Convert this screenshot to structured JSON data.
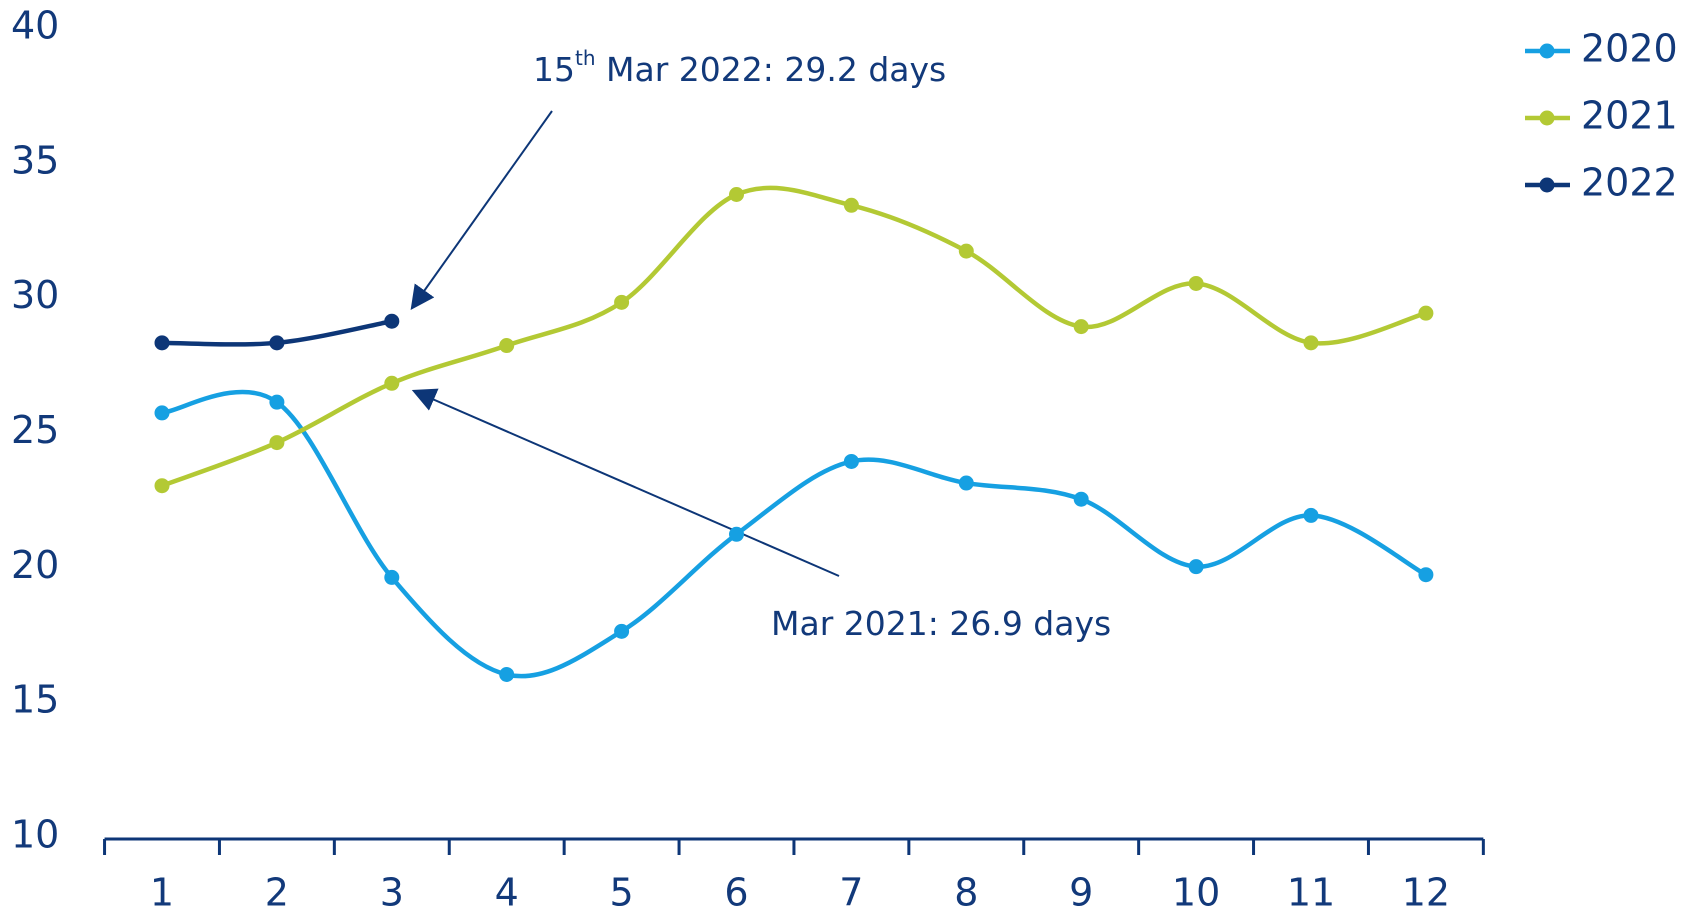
{
  "chart_data": {
    "type": "line",
    "categories": [
      "1",
      "2",
      "3",
      "4",
      "5",
      "6",
      "7",
      "8",
      "9",
      "10",
      "11",
      "12"
    ],
    "series": [
      {
        "name": "2020",
        "color": "#16a0e2",
        "values": [
          25.8,
          26.2,
          19.7,
          16.1,
          17.7,
          21.3,
          24.0,
          23.2,
          22.6,
          20.1,
          22.0,
          19.8
        ]
      },
      {
        "name": "2021",
        "color": "#b3c934",
        "values": [
          23.1,
          24.7,
          26.9,
          28.3,
          29.9,
          33.9,
          33.5,
          31.8,
          29.0,
          30.6,
          28.4,
          29.5
        ]
      },
      {
        "name": "2022",
        "color": "#0d3677",
        "values": [
          28.4,
          28.4,
          29.2,
          null,
          null,
          null,
          null,
          null,
          null,
          null,
          null,
          null
        ]
      }
    ],
    "ylim": [
      10,
      40
    ],
    "yticks": [
      10,
      15,
      20,
      25,
      30,
      35,
      40
    ],
    "annotations": [
      {
        "text": [
          "15",
          "th",
          " Mar 2022: 29.2 days"
        ]
      },
      {
        "text": [
          "Mar 2021: 26.9 days"
        ]
      }
    ],
    "legend": "right"
  }
}
